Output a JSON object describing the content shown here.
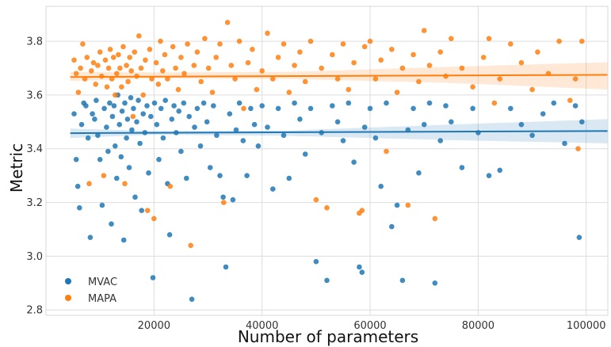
{
  "chart_data": {
    "type": "scatter",
    "xlabel": "Number of parameters",
    "ylabel": "Metric",
    "xlim": [
      0,
      104000
    ],
    "ylim": [
      2.78,
      3.93
    ],
    "xticks": [
      20000,
      40000,
      60000,
      80000,
      100000
    ],
    "yticks": [
      2.8,
      3.0,
      3.2,
      3.4,
      3.6,
      3.8
    ],
    "xtick_labels": [
      "20000",
      "40000",
      "60000",
      "80000",
      "100000"
    ],
    "ytick_labels": [
      "2.8",
      "3.0",
      "3.2",
      "3.4",
      "3.6",
      "3.8"
    ],
    "grid": true,
    "legend_position": "bottom-left",
    "series": [
      {
        "name": "MVAC",
        "color": "#1f77b4",
        "regression": {
          "x": [
            4500,
            104000
          ],
          "y": [
            3.458,
            3.466
          ]
        },
        "band": {
          "x": [
            4500,
            20000,
            45000,
            75000,
            104000
          ],
          "lower": [
            3.44,
            3.452,
            3.448,
            3.432,
            3.42
          ],
          "upper": [
            3.475,
            3.466,
            3.468,
            3.49,
            3.51
          ]
        },
        "points": [
          [
            5200,
            3.53
          ],
          [
            5600,
            3.36
          ],
          [
            5900,
            3.26
          ],
          [
            6200,
            3.18
          ],
          [
            6600,
            3.49
          ],
          [
            7000,
            3.57
          ],
          [
            7400,
            3.56
          ],
          [
            7800,
            3.44
          ],
          [
            8200,
            3.07
          ],
          [
            8600,
            3.53
          ],
          [
            9000,
            3.51
          ],
          [
            9300,
            3.58
          ],
          [
            9600,
            3.45
          ],
          [
            10000,
            3.36
          ],
          [
            10400,
            3.19
          ],
          [
            10800,
            3.55
          ],
          [
            11200,
            3.48
          ],
          [
            11500,
            3.39
          ],
          [
            11800,
            3.57
          ],
          [
            12100,
            3.12
          ],
          [
            12300,
            3.52
          ],
          [
            12600,
            3.56
          ],
          [
            12800,
            3.41
          ],
          [
            13100,
            3.29
          ],
          [
            13300,
            3.6
          ],
          [
            13600,
            3.49
          ],
          [
            13900,
            3.37
          ],
          [
            14100,
            3.54
          ],
          [
            14400,
            3.06
          ],
          [
            14600,
            3.57
          ],
          [
            14900,
            3.44
          ],
          [
            15100,
            3.51
          ],
          [
            15400,
            3.33
          ],
          [
            15700,
            3.59
          ],
          [
            15900,
            3.47
          ],
          [
            16200,
            3.55
          ],
          [
            16500,
            3.22
          ],
          [
            16800,
            3.5
          ],
          [
            17100,
            3.58
          ],
          [
            17400,
            3.42
          ],
          [
            17700,
            3.17
          ],
          [
            18000,
            3.53
          ],
          [
            18300,
            3.46
          ],
          [
            18700,
            3.56
          ],
          [
            19000,
            3.31
          ],
          [
            19400,
            3.52
          ],
          [
            19800,
            2.92
          ],
          [
            20100,
            3.57
          ],
          [
            20500,
            3.49
          ],
          [
            20900,
            3.36
          ],
          [
            21300,
            3.55
          ],
          [
            21700,
            3.44
          ],
          [
            22100,
            3.58
          ],
          [
            22500,
            3.27
          ],
          [
            22900,
            3.08
          ],
          [
            23300,
            3.51
          ],
          [
            23700,
            3.56
          ],
          [
            24100,
            3.46
          ],
          [
            24600,
            3.54
          ],
          [
            25000,
            3.39
          ],
          [
            25500,
            3.57
          ],
          [
            26000,
            3.29
          ],
          [
            26500,
            3.52
          ],
          [
            27000,
            2.84
          ],
          [
            27500,
            3.48
          ],
          [
            28000,
            3.55
          ],
          [
            28600,
            3.41
          ],
          [
            29200,
            3.57
          ],
          [
            29800,
            3.5
          ],
          [
            30400,
            3.33
          ],
          [
            31000,
            3.56
          ],
          [
            31600,
            3.45
          ],
          [
            32200,
            3.3
          ],
          [
            32800,
            3.22
          ],
          [
            33300,
            2.96
          ],
          [
            34000,
            3.53
          ],
          [
            34600,
            3.21
          ],
          [
            35200,
            3.47
          ],
          [
            35800,
            3.57
          ],
          [
            36500,
            3.43
          ],
          [
            37200,
            3.3
          ],
          [
            37900,
            3.55
          ],
          [
            38600,
            3.49
          ],
          [
            39300,
            3.41
          ],
          [
            40000,
            3.56
          ],
          [
            41000,
            3.48
          ],
          [
            42000,
            3.25
          ],
          [
            43000,
            3.55
          ],
          [
            44000,
            3.45
          ],
          [
            45000,
            3.29
          ],
          [
            46000,
            3.57
          ],
          [
            47000,
            3.51
          ],
          [
            48000,
            3.38
          ],
          [
            49000,
            3.55
          ],
          [
            50000,
            2.98
          ],
          [
            51000,
            3.46
          ],
          [
            52000,
            2.91
          ],
          [
            53000,
            3.56
          ],
          [
            54000,
            3.5
          ],
          [
            55000,
            3.43
          ],
          [
            56000,
            3.57
          ],
          [
            57000,
            3.35
          ],
          [
            58000,
            2.96
          ],
          [
            58500,
            2.94
          ],
          [
            59000,
            3.48
          ],
          [
            60000,
            3.55
          ],
          [
            61000,
            3.44
          ],
          [
            62000,
            3.26
          ],
          [
            63000,
            3.57
          ],
          [
            64000,
            3.11
          ],
          [
            65000,
            3.19
          ],
          [
            66000,
            2.91
          ],
          [
            67000,
            3.47
          ],
          [
            68000,
            3.55
          ],
          [
            69000,
            3.31
          ],
          [
            70000,
            3.49
          ],
          [
            71000,
            3.57
          ],
          [
            72000,
            2.9
          ],
          [
            73000,
            3.43
          ],
          [
            74000,
            3.56
          ],
          [
            75000,
            3.5
          ],
          [
            77000,
            3.33
          ],
          [
            79000,
            3.55
          ],
          [
            80000,
            3.46
          ],
          [
            82000,
            3.3
          ],
          [
            84000,
            3.32
          ],
          [
            86000,
            3.55
          ],
          [
            88000,
            3.49
          ],
          [
            90000,
            3.45
          ],
          [
            92000,
            3.53
          ],
          [
            94000,
            3.57
          ],
          [
            96000,
            3.42
          ],
          [
            98000,
            3.56
          ],
          [
            98700,
            3.07
          ],
          [
            99200,
            3.5
          ]
        ]
      },
      {
        "name": "MAPA",
        "color": "#ff7f0e",
        "regression": {
          "x": [
            4500,
            104000
          ],
          "y": [
            3.667,
            3.675
          ]
        },
        "band": {
          "x": [
            4500,
            20000,
            45000,
            75000,
            104000
          ],
          "lower": [
            3.652,
            3.662,
            3.66,
            3.645,
            3.62
          ],
          "upper": [
            3.686,
            3.684,
            3.686,
            3.705,
            3.722
          ]
        },
        "points": [
          [
            5200,
            3.73
          ],
          [
            5600,
            3.68
          ],
          [
            6000,
            3.61
          ],
          [
            6400,
            3.7
          ],
          [
            6800,
            3.79
          ],
          [
            7200,
            3.66
          ],
          [
            7600,
            3.74
          ],
          [
            8000,
            3.27
          ],
          [
            8400,
            3.69
          ],
          [
            8800,
            3.72
          ],
          [
            9200,
            3.64
          ],
          [
            9600,
            3.71
          ],
          [
            10000,
            3.76
          ],
          [
            10300,
            3.67
          ],
          [
            10700,
            3.3
          ],
          [
            11000,
            3.73
          ],
          [
            11300,
            3.63
          ],
          [
            11600,
            3.7
          ],
          [
            11900,
            3.77
          ],
          [
            12200,
            3.66
          ],
          [
            12500,
            3.74
          ],
          [
            12800,
            3.6
          ],
          [
            13100,
            3.68
          ],
          [
            13400,
            3.75
          ],
          [
            13700,
            3.7
          ],
          [
            14000,
            3.63
          ],
          [
            14300,
            3.78
          ],
          [
            14600,
            3.27
          ],
          [
            14900,
            3.71
          ],
          [
            15200,
            3.65
          ],
          [
            15500,
            3.74
          ],
          [
            15800,
            3.69
          ],
          [
            16100,
            3.52
          ],
          [
            16400,
            3.76
          ],
          [
            16800,
            3.67
          ],
          [
            17200,
            3.82
          ],
          [
            17600,
            3.7
          ],
          [
            18000,
            3.6
          ],
          [
            18400,
            3.73
          ],
          [
            18800,
            3.17
          ],
          [
            19200,
            3.77
          ],
          [
            19600,
            3.66
          ],
          [
            20000,
            3.14
          ],
          [
            20400,
            3.72
          ],
          [
            20800,
            3.64
          ],
          [
            21200,
            3.8
          ],
          [
            21600,
            3.69
          ],
          [
            22000,
            3.75
          ],
          [
            22500,
            3.66
          ],
          [
            23000,
            3.26
          ],
          [
            23500,
            3.78
          ],
          [
            24000,
            3.7
          ],
          [
            24500,
            3.62
          ],
          [
            25000,
            3.74
          ],
          [
            25600,
            3.68
          ],
          [
            26200,
            3.79
          ],
          [
            26800,
            3.04
          ],
          [
            27400,
            3.71
          ],
          [
            28000,
            3.76
          ],
          [
            28700,
            3.65
          ],
          [
            29400,
            3.81
          ],
          [
            30100,
            3.7
          ],
          [
            30800,
            3.61
          ],
          [
            31500,
            3.74
          ],
          [
            32200,
            3.79
          ],
          [
            32900,
            3.2
          ],
          [
            33600,
            3.87
          ],
          [
            34300,
            3.71
          ],
          [
            35000,
            3.66
          ],
          [
            35800,
            3.8
          ],
          [
            36600,
            3.55
          ],
          [
            37400,
            3.72
          ],
          [
            38200,
            3.77
          ],
          [
            39000,
            3.62
          ],
          [
            40000,
            3.69
          ],
          [
            41000,
            3.83
          ],
          [
            42000,
            3.66
          ],
          [
            43000,
            3.74
          ],
          [
            44000,
            3.79
          ],
          [
            45000,
            3.61
          ],
          [
            46000,
            3.71
          ],
          [
            47000,
            3.76
          ],
          [
            48000,
            3.65
          ],
          [
            49000,
            3.8
          ],
          [
            50000,
            3.21
          ],
          [
            51000,
            3.7
          ],
          [
            52000,
            3.18
          ],
          [
            53000,
            3.75
          ],
          [
            54000,
            3.66
          ],
          [
            55000,
            3.79
          ],
          [
            56000,
            3.62
          ],
          [
            57000,
            3.72
          ],
          [
            58000,
            3.16
          ],
          [
            58500,
            3.17
          ],
          [
            59000,
            3.78
          ],
          [
            60000,
            3.8
          ],
          [
            61000,
            3.66
          ],
          [
            62000,
            3.73
          ],
          [
            63000,
            3.39
          ],
          [
            64000,
            3.77
          ],
          [
            65000,
            3.61
          ],
          [
            66000,
            3.7
          ],
          [
            67000,
            3.19
          ],
          [
            68000,
            3.75
          ],
          [
            69000,
            3.65
          ],
          [
            70000,
            3.84
          ],
          [
            71000,
            3.71
          ],
          [
            72000,
            3.14
          ],
          [
            73000,
            3.76
          ],
          [
            74000,
            3.67
          ],
          [
            75000,
            3.81
          ],
          [
            77000,
            3.7
          ],
          [
            79000,
            3.63
          ],
          [
            81000,
            3.74
          ],
          [
            82000,
            3.81
          ],
          [
            83000,
            3.57
          ],
          [
            84000,
            3.66
          ],
          [
            86000,
            3.79
          ],
          [
            88000,
            3.72
          ],
          [
            90000,
            3.62
          ],
          [
            91000,
            3.76
          ],
          [
            93000,
            3.68
          ],
          [
            95000,
            3.8
          ],
          [
            97000,
            3.58
          ],
          [
            98000,
            3.66
          ],
          [
            98500,
            3.4
          ],
          [
            99200,
            3.8
          ]
        ]
      }
    ]
  }
}
